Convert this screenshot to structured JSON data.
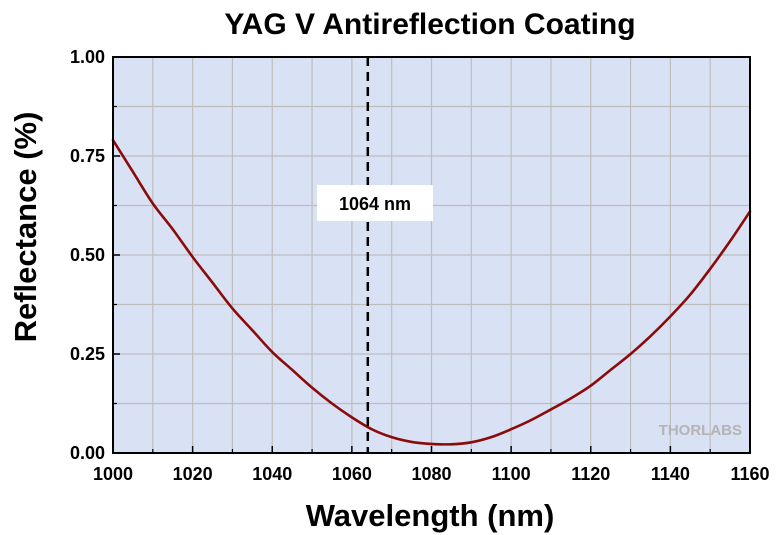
{
  "chart_data": {
    "type": "line",
    "title": "YAG V Antireflection Coating",
    "xlabel": "Wavelength (nm)",
    "ylabel": "Reflectance (%)",
    "xlim": [
      1000,
      1160
    ],
    "ylim": [
      0,
      1.0
    ],
    "x_ticks": [
      1000,
      1020,
      1040,
      1060,
      1080,
      1100,
      1120,
      1140,
      1160
    ],
    "y_ticks": [
      0.0,
      0.25,
      0.5,
      0.75,
      1.0
    ],
    "x_tick_labels": [
      "1000",
      "1020",
      "1040",
      "1060",
      "1080",
      "1100",
      "1120",
      "1140",
      "1160"
    ],
    "y_tick_labels": [
      "0.00",
      "0.25",
      "0.50",
      "0.75",
      "1.00"
    ],
    "grid": true,
    "series": [
      {
        "name": "Reflectance",
        "color": "#8b0a0a",
        "x": [
          1000,
          1005,
          1010,
          1015,
          1020,
          1025,
          1030,
          1035,
          1040,
          1045,
          1050,
          1055,
          1060,
          1065,
          1070,
          1075,
          1080,
          1085,
          1090,
          1095,
          1100,
          1105,
          1110,
          1115,
          1120,
          1125,
          1130,
          1135,
          1140,
          1145,
          1150,
          1155,
          1160
        ],
        "y": [
          0.79,
          0.71,
          0.63,
          0.565,
          0.495,
          0.43,
          0.365,
          0.31,
          0.255,
          0.21,
          0.165,
          0.125,
          0.09,
          0.06,
          0.04,
          0.028,
          0.023,
          0.022,
          0.027,
          0.04,
          0.06,
          0.083,
          0.11,
          0.138,
          0.17,
          0.21,
          0.25,
          0.295,
          0.345,
          0.4,
          0.465,
          0.535,
          0.61
        ]
      }
    ],
    "annotation": {
      "type": "vline",
      "x": 1064,
      "label": "1064 nm"
    },
    "colors": {
      "plot_background": "#d9e1f4",
      "grid": "#bebebe",
      "line": "#8b0a0a"
    }
  },
  "logo_text": "THORLABS"
}
